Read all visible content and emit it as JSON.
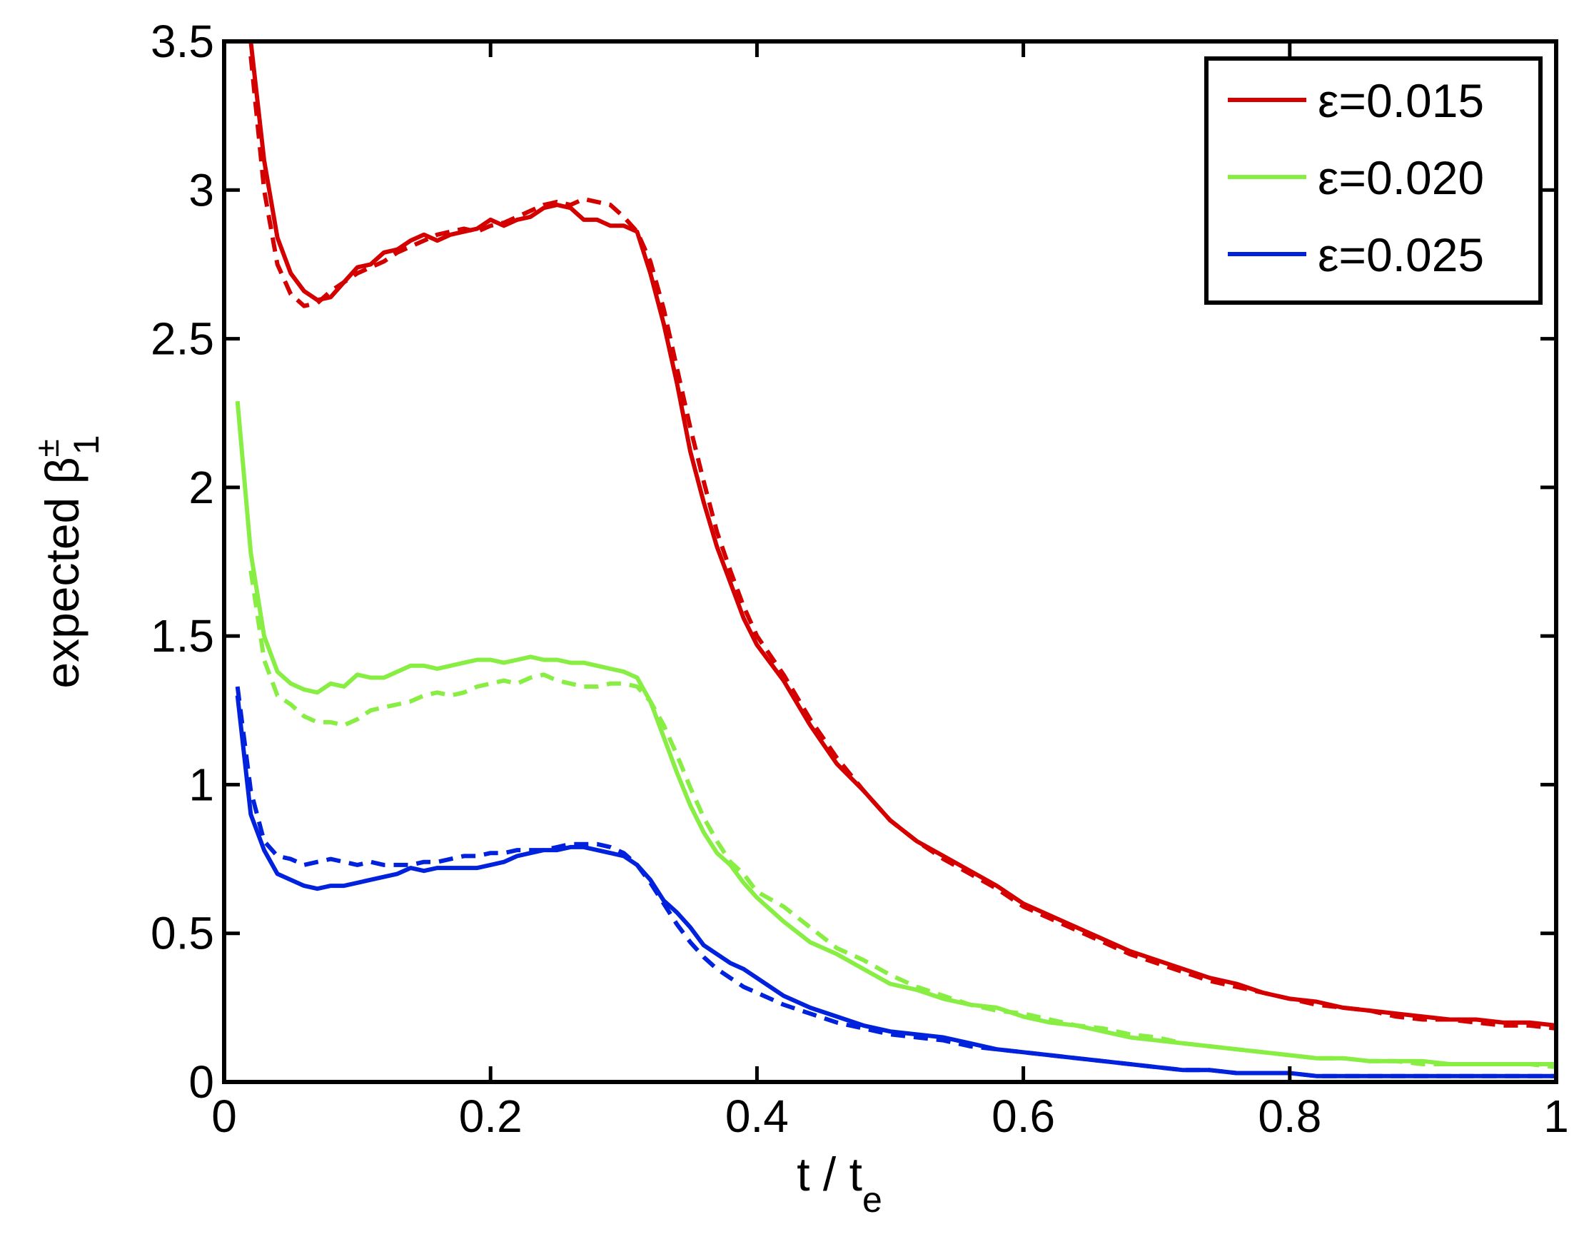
{
  "chart_data": {
    "type": "line",
    "xlabel_main": "t / t",
    "xlabel_sub": "e",
    "ylabel_main": "expected β",
    "ylabel_sup": "±",
    "ylabel_sub": "1",
    "xlim": [
      0,
      1
    ],
    "ylim": [
      0,
      3.5
    ],
    "xticks": [
      "0",
      "0.2",
      "0.4",
      "0.6",
      "0.8",
      "1"
    ],
    "yticks": [
      "0",
      "0.5",
      "1",
      "1.5",
      "2",
      "2.5",
      "3",
      "3.5"
    ],
    "grid": false,
    "legend_position": "top-right",
    "series": [
      {
        "name": "ε=0.015",
        "color": "#d40000",
        "style": "solid",
        "x": [
          0.02,
          0.03,
          0.04,
          0.05,
          0.06,
          0.07,
          0.08,
          0.09,
          0.1,
          0.11,
          0.12,
          0.13,
          0.14,
          0.15,
          0.16,
          0.17,
          0.18,
          0.19,
          0.2,
          0.21,
          0.22,
          0.23,
          0.24,
          0.25,
          0.26,
          0.27,
          0.28,
          0.29,
          0.3,
          0.31,
          0.32,
          0.33,
          0.34,
          0.35,
          0.36,
          0.37,
          0.38,
          0.39,
          0.4,
          0.42,
          0.44,
          0.46,
          0.48,
          0.5,
          0.52,
          0.54,
          0.56,
          0.58,
          0.6,
          0.62,
          0.64,
          0.66,
          0.68,
          0.7,
          0.72,
          0.74,
          0.76,
          0.78,
          0.8,
          0.82,
          0.84,
          0.86,
          0.88,
          0.9,
          0.92,
          0.94,
          0.96,
          0.98,
          1.0
        ],
        "y": [
          3.5,
          3.1,
          2.84,
          2.72,
          2.66,
          2.63,
          2.64,
          2.69,
          2.74,
          2.75,
          2.79,
          2.8,
          2.83,
          2.85,
          2.83,
          2.85,
          2.86,
          2.87,
          2.9,
          2.88,
          2.9,
          2.91,
          2.94,
          2.95,
          2.94,
          2.9,
          2.9,
          2.88,
          2.88,
          2.86,
          2.72,
          2.55,
          2.35,
          2.12,
          1.95,
          1.8,
          1.68,
          1.56,
          1.47,
          1.35,
          1.2,
          1.07,
          0.98,
          0.88,
          0.81,
          0.76,
          0.71,
          0.66,
          0.6,
          0.56,
          0.52,
          0.48,
          0.44,
          0.41,
          0.38,
          0.35,
          0.33,
          0.3,
          0.28,
          0.27,
          0.25,
          0.24,
          0.23,
          0.22,
          0.21,
          0.21,
          0.2,
          0.2,
          0.19
        ]
      },
      {
        "name": "",
        "color": "#d40000",
        "style": "dashed",
        "x": [
          0.02,
          0.03,
          0.04,
          0.05,
          0.06,
          0.07,
          0.08,
          0.09,
          0.1,
          0.11,
          0.12,
          0.13,
          0.14,
          0.15,
          0.16,
          0.17,
          0.18,
          0.19,
          0.2,
          0.21,
          0.22,
          0.23,
          0.24,
          0.25,
          0.26,
          0.27,
          0.28,
          0.29,
          0.3,
          0.31,
          0.32,
          0.33,
          0.34,
          0.35,
          0.36,
          0.37,
          0.38,
          0.39,
          0.4,
          0.42,
          0.44,
          0.46,
          0.48,
          0.5,
          0.52,
          0.54,
          0.56,
          0.58,
          0.6,
          0.62,
          0.64,
          0.66,
          0.68,
          0.7,
          0.72,
          0.74,
          0.76,
          0.78,
          0.8,
          0.82,
          0.84,
          0.86,
          0.88,
          0.9,
          0.92,
          0.94,
          0.96,
          0.98,
          1.0
        ],
        "y": [
          3.45,
          3.0,
          2.75,
          2.65,
          2.61,
          2.62,
          2.66,
          2.69,
          2.72,
          2.74,
          2.76,
          2.79,
          2.81,
          2.83,
          2.85,
          2.86,
          2.87,
          2.86,
          2.88,
          2.89,
          2.91,
          2.93,
          2.95,
          2.96,
          2.95,
          2.97,
          2.96,
          2.95,
          2.91,
          2.86,
          2.76,
          2.6,
          2.4,
          2.2,
          2.02,
          1.85,
          1.72,
          1.6,
          1.5,
          1.37,
          1.22,
          1.09,
          0.98,
          0.88,
          0.81,
          0.75,
          0.7,
          0.65,
          0.59,
          0.55,
          0.51,
          0.47,
          0.43,
          0.4,
          0.37,
          0.34,
          0.32,
          0.3,
          0.28,
          0.26,
          0.25,
          0.24,
          0.22,
          0.21,
          0.21,
          0.2,
          0.19,
          0.19,
          0.18
        ]
      },
      {
        "name": "ε=0.020",
        "color": "#88ee44",
        "style": "solid",
        "x": [
          0.01,
          0.02,
          0.03,
          0.04,
          0.05,
          0.06,
          0.07,
          0.08,
          0.09,
          0.1,
          0.11,
          0.12,
          0.13,
          0.14,
          0.15,
          0.16,
          0.17,
          0.18,
          0.19,
          0.2,
          0.21,
          0.22,
          0.23,
          0.24,
          0.25,
          0.26,
          0.27,
          0.28,
          0.29,
          0.3,
          0.31,
          0.32,
          0.33,
          0.34,
          0.35,
          0.36,
          0.37,
          0.38,
          0.39,
          0.4,
          0.42,
          0.44,
          0.46,
          0.48,
          0.5,
          0.52,
          0.54,
          0.56,
          0.58,
          0.6,
          0.62,
          0.64,
          0.66,
          0.68,
          0.7,
          0.72,
          0.74,
          0.76,
          0.78,
          0.8,
          0.82,
          0.84,
          0.86,
          0.88,
          0.9,
          0.92,
          0.94,
          0.96,
          0.98,
          1.0
        ],
        "y": [
          2.29,
          1.78,
          1.5,
          1.38,
          1.34,
          1.32,
          1.31,
          1.34,
          1.33,
          1.37,
          1.36,
          1.36,
          1.38,
          1.4,
          1.4,
          1.39,
          1.4,
          1.41,
          1.42,
          1.42,
          1.41,
          1.42,
          1.43,
          1.42,
          1.42,
          1.41,
          1.41,
          1.4,
          1.39,
          1.38,
          1.36,
          1.28,
          1.16,
          1.04,
          0.93,
          0.84,
          0.77,
          0.73,
          0.67,
          0.62,
          0.54,
          0.47,
          0.43,
          0.38,
          0.33,
          0.31,
          0.28,
          0.26,
          0.25,
          0.22,
          0.2,
          0.19,
          0.17,
          0.15,
          0.14,
          0.13,
          0.12,
          0.11,
          0.1,
          0.09,
          0.08,
          0.08,
          0.07,
          0.07,
          0.07,
          0.06,
          0.06,
          0.06,
          0.06,
          0.06
        ]
      },
      {
        "name": "",
        "color": "#88ee44",
        "style": "dashed",
        "x": [
          0.02,
          0.03,
          0.04,
          0.05,
          0.06,
          0.07,
          0.08,
          0.09,
          0.1,
          0.11,
          0.12,
          0.13,
          0.14,
          0.15,
          0.16,
          0.17,
          0.18,
          0.19,
          0.2,
          0.21,
          0.22,
          0.23,
          0.24,
          0.25,
          0.26,
          0.27,
          0.28,
          0.29,
          0.3,
          0.31,
          0.32,
          0.33,
          0.34,
          0.35,
          0.36,
          0.37,
          0.38,
          0.39,
          0.4,
          0.42,
          0.44,
          0.46,
          0.48,
          0.5,
          0.52,
          0.54,
          0.56,
          0.58,
          0.6,
          0.62,
          0.64,
          0.66,
          0.68,
          0.7,
          0.72,
          0.74,
          0.76,
          0.78,
          0.8,
          0.82,
          0.84,
          0.86,
          0.88,
          0.9,
          0.92,
          0.94,
          0.96,
          0.98,
          1.0
        ],
        "y": [
          1.72,
          1.42,
          1.3,
          1.27,
          1.23,
          1.21,
          1.21,
          1.2,
          1.22,
          1.25,
          1.26,
          1.27,
          1.28,
          1.3,
          1.31,
          1.3,
          1.31,
          1.33,
          1.34,
          1.35,
          1.34,
          1.36,
          1.37,
          1.35,
          1.34,
          1.33,
          1.33,
          1.34,
          1.34,
          1.33,
          1.28,
          1.2,
          1.1,
          0.99,
          0.89,
          0.81,
          0.74,
          0.7,
          0.64,
          0.59,
          0.52,
          0.45,
          0.41,
          0.36,
          0.32,
          0.29,
          0.26,
          0.24,
          0.23,
          0.21,
          0.19,
          0.18,
          0.16,
          0.15,
          0.13,
          0.12,
          0.11,
          0.1,
          0.09,
          0.08,
          0.08,
          0.07,
          0.07,
          0.06,
          0.06,
          0.06,
          0.06,
          0.06,
          0.05
        ]
      },
      {
        "name": "ε=0.025",
        "color": "#0022dd",
        "style": "solid",
        "x": [
          0.01,
          0.02,
          0.03,
          0.04,
          0.05,
          0.06,
          0.07,
          0.08,
          0.09,
          0.1,
          0.11,
          0.12,
          0.13,
          0.14,
          0.15,
          0.16,
          0.17,
          0.18,
          0.19,
          0.2,
          0.21,
          0.22,
          0.23,
          0.24,
          0.25,
          0.26,
          0.27,
          0.28,
          0.29,
          0.3,
          0.31,
          0.32,
          0.33,
          0.34,
          0.35,
          0.36,
          0.37,
          0.38,
          0.39,
          0.4,
          0.42,
          0.44,
          0.46,
          0.48,
          0.5,
          0.52,
          0.54,
          0.56,
          0.58,
          0.6,
          0.62,
          0.64,
          0.66,
          0.68,
          0.7,
          0.72,
          0.74,
          0.76,
          0.78,
          0.8,
          0.82,
          0.84,
          0.86,
          0.88,
          0.9,
          0.92,
          0.94,
          0.96,
          0.98,
          1.0
        ],
        "y": [
          1.3,
          0.9,
          0.78,
          0.7,
          0.68,
          0.66,
          0.65,
          0.66,
          0.66,
          0.67,
          0.68,
          0.69,
          0.7,
          0.72,
          0.71,
          0.72,
          0.72,
          0.72,
          0.72,
          0.73,
          0.74,
          0.76,
          0.77,
          0.78,
          0.78,
          0.79,
          0.79,
          0.78,
          0.77,
          0.76,
          0.73,
          0.68,
          0.61,
          0.57,
          0.52,
          0.46,
          0.43,
          0.4,
          0.38,
          0.35,
          0.29,
          0.25,
          0.22,
          0.19,
          0.17,
          0.16,
          0.15,
          0.13,
          0.11,
          0.1,
          0.09,
          0.08,
          0.07,
          0.06,
          0.05,
          0.04,
          0.04,
          0.03,
          0.03,
          0.03,
          0.02,
          0.02,
          0.02,
          0.02,
          0.02,
          0.02,
          0.02,
          0.02,
          0.02,
          0.02
        ]
      },
      {
        "name": "",
        "color": "#0022dd",
        "style": "dashed",
        "x": [
          0.01,
          0.02,
          0.03,
          0.04,
          0.05,
          0.06,
          0.07,
          0.08,
          0.09,
          0.1,
          0.11,
          0.12,
          0.13,
          0.14,
          0.15,
          0.16,
          0.17,
          0.18,
          0.19,
          0.2,
          0.21,
          0.22,
          0.23,
          0.24,
          0.25,
          0.26,
          0.27,
          0.28,
          0.29,
          0.3,
          0.31,
          0.32,
          0.33,
          0.34,
          0.35,
          0.36,
          0.37,
          0.38,
          0.39,
          0.4,
          0.42,
          0.44,
          0.46,
          0.48,
          0.5,
          0.52,
          0.54,
          0.56,
          0.58,
          0.6,
          0.62,
          0.64,
          0.66,
          0.68,
          0.7,
          0.72,
          0.74,
          0.76,
          0.78,
          0.8,
          0.82,
          0.84,
          0.86,
          0.88,
          0.9,
          0.92,
          0.94,
          0.96,
          0.98,
          1.0
        ],
        "y": [
          1.33,
          0.98,
          0.81,
          0.76,
          0.75,
          0.73,
          0.74,
          0.75,
          0.74,
          0.73,
          0.74,
          0.73,
          0.73,
          0.73,
          0.74,
          0.74,
          0.75,
          0.76,
          0.76,
          0.77,
          0.77,
          0.78,
          0.78,
          0.78,
          0.79,
          0.8,
          0.8,
          0.8,
          0.79,
          0.77,
          0.73,
          0.67,
          0.6,
          0.53,
          0.47,
          0.42,
          0.38,
          0.35,
          0.32,
          0.3,
          0.26,
          0.23,
          0.2,
          0.18,
          0.16,
          0.15,
          0.14,
          0.12,
          0.11,
          0.1,
          0.09,
          0.08,
          0.07,
          0.06,
          0.05,
          0.04,
          0.04,
          0.03,
          0.03,
          0.03,
          0.02,
          0.02,
          0.02,
          0.02,
          0.02,
          0.02,
          0.02,
          0.02,
          0.02,
          0.02
        ]
      }
    ]
  }
}
